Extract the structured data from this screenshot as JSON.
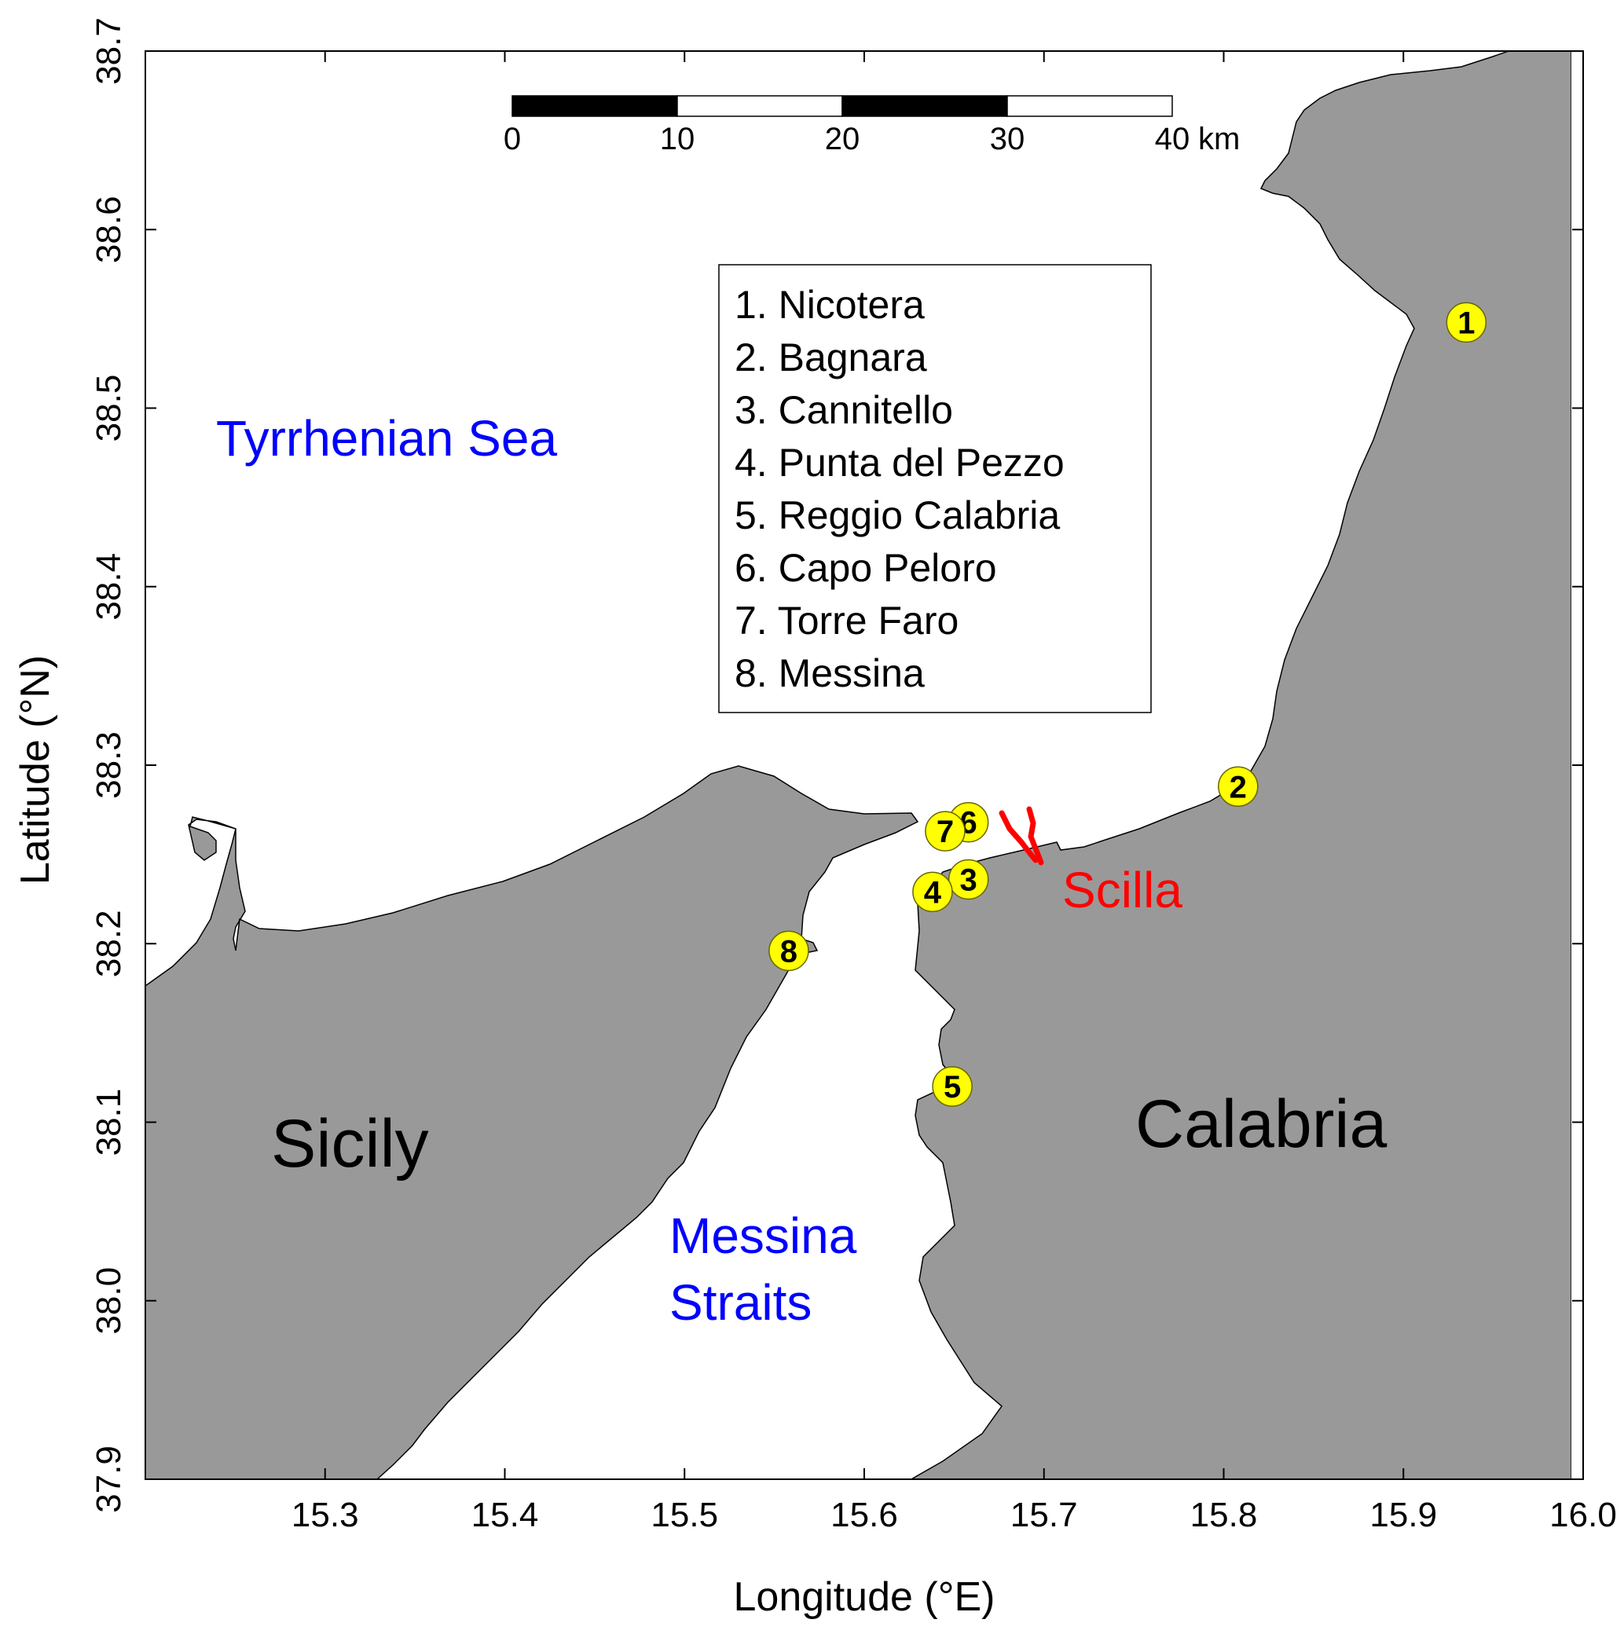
{
  "axes": {
    "xlabel": "Longitude (°E)",
    "ylabel": "Latitude (°N)",
    "xlim": [
      15.2,
      16.0
    ],
    "ylim": [
      37.9,
      38.7
    ],
    "xticks": [
      "15.3",
      "15.4",
      "15.5",
      "15.6",
      "15.7",
      "15.8",
      "15.9",
      "16.0"
    ],
    "yticks": [
      "37.9",
      "38.0",
      "38.1",
      "38.2",
      "38.3",
      "38.4",
      "38.5",
      "38.6",
      "38.7"
    ]
  },
  "labels": {
    "sea": "Tyrrhenian Sea",
    "straits_line1": "Messina",
    "straits_line2": "Straits",
    "sicily": "Sicily",
    "calabria": "Calabria",
    "scilla": "Scilla"
  },
  "legend": {
    "entries": [
      "1. Nicotera",
      "2. Bagnara",
      "3. Cannitello",
      "4. Punta del Pezzo",
      "5. Reggio Calabria",
      "6. Capo Peloro",
      "7. Torre Faro",
      "8. Messina"
    ]
  },
  "scalebar": {
    "ticks": [
      "0",
      "10",
      "20",
      "30",
      "40"
    ],
    "unit": "km"
  },
  "sites": [
    {
      "id": "1",
      "name": "Nicotera",
      "lon": 15.935,
      "lat": 38.548
    },
    {
      "id": "2",
      "name": "Bagnara",
      "lon": 15.808,
      "lat": 38.288
    },
    {
      "id": "3",
      "name": "Cannitello",
      "lon": 15.658,
      "lat": 38.236
    },
    {
      "id": "4",
      "name": "Punta del Pezzo",
      "lon": 15.638,
      "lat": 38.229
    },
    {
      "id": "5",
      "name": "Reggio Calabria",
      "lon": 15.649,
      "lat": 38.12
    },
    {
      "id": "6",
      "name": "Capo Peloro",
      "lon": 15.658,
      "lat": 38.268
    },
    {
      "id": "7",
      "name": "Torre Faro",
      "lon": 15.645,
      "lat": 38.263
    },
    {
      "id": "8",
      "name": "Messina",
      "lon": 15.558,
      "lat": 38.196
    }
  ],
  "colors": {
    "land": "#999999",
    "sea": "#ffffff",
    "marker_fill": "#ffff00",
    "sea_text": "#0000ff",
    "scilla": "#ff0000"
  }
}
